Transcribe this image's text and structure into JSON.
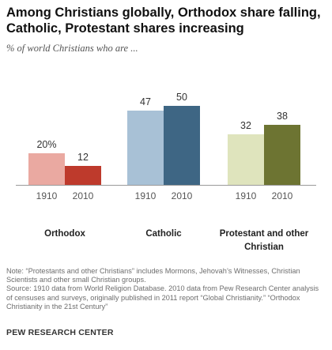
{
  "header": {
    "title": "Among Christians globally, Orthodox share falling, Catholic, Protestant shares increasing",
    "subtitle": "% of world Christians who are ..."
  },
  "chart_data": {
    "type": "bar",
    "title": "Among Christians globally, Orthodox share falling, Catholic, Protestant shares increasing",
    "subtitle": "% of world Christians who are ...",
    "groups": [
      {
        "label": "Orthodox",
        "years": [
          "1910",
          "2010"
        ],
        "values": [
          20,
          12
        ],
        "value_labels": [
          "20%",
          "12"
        ],
        "colors": [
          "#eaa9a1",
          "#be3a2c"
        ]
      },
      {
        "label": "Catholic",
        "years": [
          "1910",
          "2010"
        ],
        "values": [
          47,
          50
        ],
        "value_labels": [
          "47",
          "50"
        ],
        "colors": [
          "#a8c1d6",
          "#3e6684"
        ]
      },
      {
        "label": "Protestant and other Christian",
        "years": [
          "1910",
          "2010"
        ],
        "values": [
          32,
          38
        ],
        "value_labels": [
          "32",
          "38"
        ],
        "colors": [
          "#dfe4bd",
          "#6d7432"
        ]
      }
    ],
    "ylim": [
      0,
      50
    ],
    "grid": false,
    "legend": "none"
  },
  "notes": {
    "note": "Note: “Protestants and other Christians” includes Mormons, Jehovah’s Witnesses, Christian Scientists and other small Christian groups.",
    "source": "Source: 1910 data from World Religion Database. 2010 data from Pew Research Center analysis of censuses and surveys, originally published in 2011 report “Global Christianity.” “Orthodox Christianity in the 21st Century”"
  },
  "footer": {
    "org": "PEW RESEARCH CENTER"
  }
}
